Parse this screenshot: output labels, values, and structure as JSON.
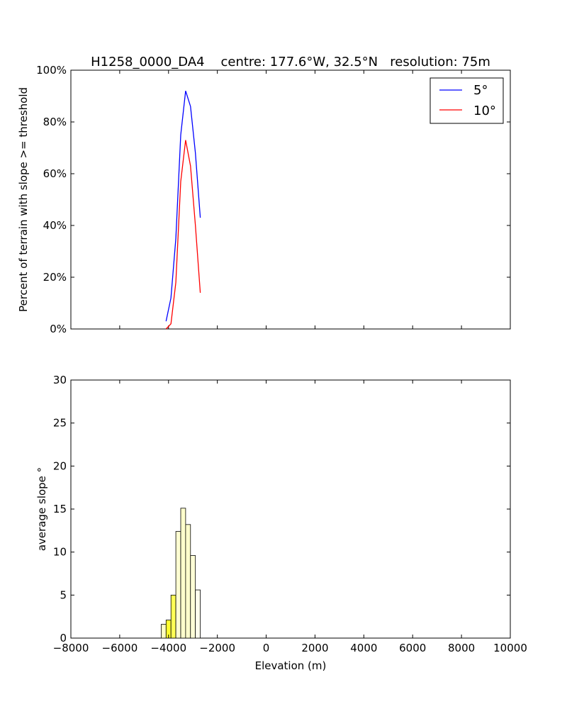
{
  "title": "H1258_0000_DA4    centre: 177.6°W, 32.5°N   resolution: 75m",
  "colors": {
    "series_5": "#0000ff",
    "series_10": "#ff0000",
    "bar_edge": "#000000"
  },
  "chart_data": [
    {
      "type": "line",
      "title": "H1258_0000_DA4    centre: 177.6°W, 32.5°N   resolution: 75m",
      "xlabel": "",
      "ylabel": "Percent of terrain with slope >= threshold",
      "xlim": [
        -8000,
        10000
      ],
      "ylim": [
        0,
        100
      ],
      "yticks": [
        0,
        20,
        40,
        60,
        80,
        100
      ],
      "ytick_labels": [
        "0%",
        "20%",
        "40%",
        "60%",
        "80%",
        "100%"
      ],
      "legend_position": "top-right",
      "grid": false,
      "series": [
        {
          "name": "5°",
          "color": "#0000ff",
          "x": [
            -4100,
            -3900,
            -3700,
            -3500,
            -3300,
            -3100,
            -2900,
            -2700
          ],
          "y": [
            3,
            12,
            35,
            75,
            92,
            86,
            68,
            43
          ]
        },
        {
          "name": "10°",
          "color": "#ff0000",
          "x": [
            -4100,
            -3900,
            -3700,
            -3500,
            -3300,
            -3100,
            -2900,
            -2700
          ],
          "y": [
            0,
            2,
            18,
            57,
            73,
            63,
            40,
            14
          ]
        }
      ]
    },
    {
      "type": "bar",
      "xlabel": "Elevation (m)",
      "ylabel": "average slope °",
      "xlim": [
        -8000,
        10000
      ],
      "ylim": [
        0,
        30
      ],
      "xticks": [
        -8000,
        -6000,
        -4000,
        -2000,
        0,
        2000,
        4000,
        6000,
        8000,
        10000
      ],
      "xtick_labels": [
        "−8000",
        "−6000",
        "−4000",
        "−2000",
        "0",
        "2000",
        "4000",
        "6000",
        "8000",
        "10000"
      ],
      "yticks": [
        0,
        5,
        10,
        15,
        20,
        25,
        30
      ],
      "ytick_labels": [
        "0",
        "5",
        "10",
        "15",
        "20",
        "25",
        "30"
      ],
      "grid": false,
      "bar_width": 200,
      "bars": [
        {
          "x": -4200,
          "value": 1.6,
          "color": "#ffffc2"
        },
        {
          "x": -4000,
          "value": 2.1,
          "color": "#ffff2e"
        },
        {
          "x": -3800,
          "value": 5.0,
          "color": "#ffff55"
        },
        {
          "x": -3600,
          "value": 12.4,
          "color": "#ffffd2"
        },
        {
          "x": -3400,
          "value": 15.1,
          "color": "#ffffcc"
        },
        {
          "x": -3200,
          "value": 13.2,
          "color": "#ffffcc"
        },
        {
          "x": -3000,
          "value": 9.6,
          "color": "#ffffd6"
        },
        {
          "x": -2800,
          "value": 5.6,
          "color": "#ffffee"
        }
      ]
    }
  ]
}
